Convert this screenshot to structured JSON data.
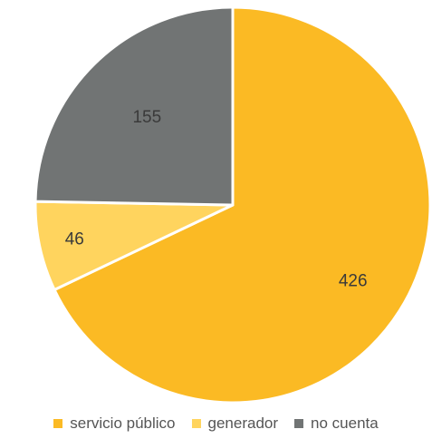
{
  "chart_data": {
    "type": "pie",
    "categories": [
      "servicio público",
      "generador",
      "no cuenta"
    ],
    "values": [
      426,
      46,
      155
    ],
    "colors": [
      "#FBBA24",
      "#FFD45E",
      "#717474"
    ],
    "data_labels": [
      "426",
      "46",
      "155"
    ],
    "start_angle_deg": 0,
    "direction": "clockwise",
    "legend_position": "bottom",
    "title": ""
  }
}
